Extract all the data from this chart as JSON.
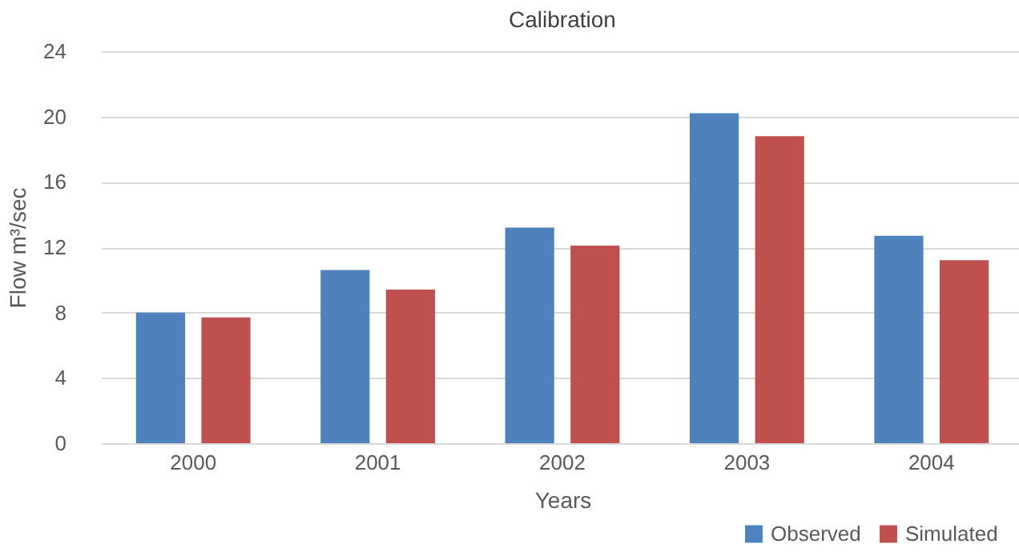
{
  "chart_data": {
    "type": "bar",
    "title": "Calibration",
    "xlabel": "Years",
    "ylabel": "Flow m³/sec",
    "categories": [
      "2000",
      "2001",
      "2002",
      "2003",
      "2004"
    ],
    "series": [
      {
        "name": "Observed",
        "color": "#4f81bd",
        "values": [
          8.0,
          10.6,
          13.2,
          20.2,
          12.7
        ]
      },
      {
        "name": "Simulated",
        "color": "#c0504d",
        "values": [
          7.7,
          9.4,
          12.1,
          18.8,
          11.2
        ]
      }
    ],
    "ylim": [
      0,
      24
    ],
    "yticks": [
      0,
      4,
      8,
      12,
      16,
      20,
      24
    ],
    "grid": "y",
    "legend": "bottom right"
  }
}
